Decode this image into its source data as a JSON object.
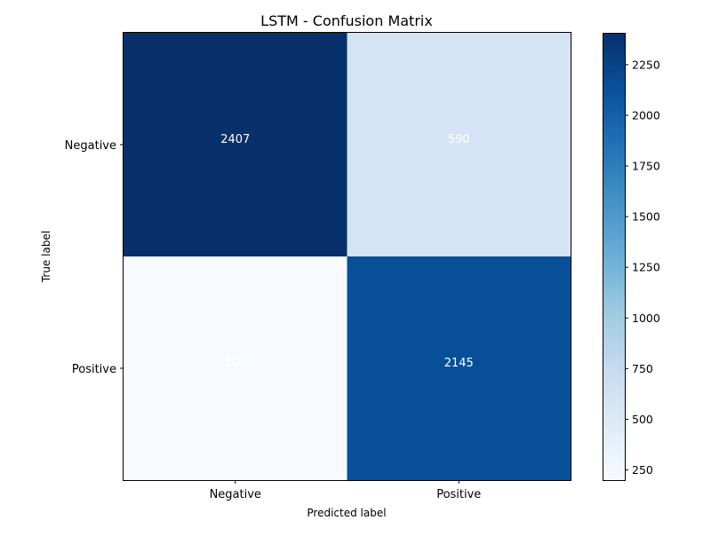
{
  "chart_data": {
    "type": "heatmap",
    "title": "LSTM - Confusion Matrix",
    "xlabel": "Predicted label",
    "ylabel": "True label",
    "x_categories": [
      "Negative",
      "Positive"
    ],
    "y_categories": [
      "Negative",
      "Positive"
    ],
    "matrix": [
      [
        2407,
        590
      ],
      [
        200,
        2145
      ]
    ],
    "colormap": "Blues",
    "color_low": "#f7fbff",
    "color_high": "#08306b",
    "vmin": 200,
    "vmax": 2407,
    "colorbar_ticks": [
      250,
      500,
      750,
      1000,
      1250,
      1500,
      1750,
      2000,
      2250
    ],
    "cell_text_color": "#ffffff",
    "grid": false
  }
}
